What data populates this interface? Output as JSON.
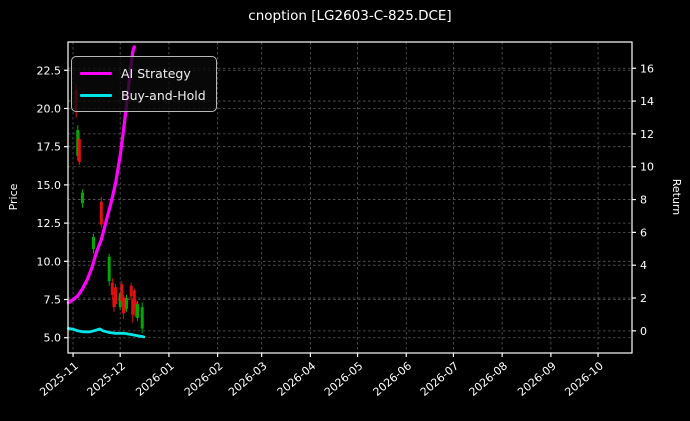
{
  "window": {
    "title": "cnoption [LG2603-C-825.DCE]"
  },
  "legend": {
    "items": [
      {
        "label": "AI Strategy",
        "color": "#ff00ff"
      },
      {
        "label": "Buy-and-Hold",
        "color": "#00e5e5"
      }
    ]
  },
  "chart_data": {
    "type": "candlestick+line",
    "title": "cnoption [LG2603-C-825.DCE]",
    "left_axis": {
      "label": "Price",
      "ticks": [
        5.0,
        7.5,
        10.0,
        12.5,
        15.0,
        17.5,
        20.0,
        22.5
      ],
      "ylim": [
        4.0,
        24.35
      ],
      "grid": true
    },
    "right_axis": {
      "label": "Return",
      "ticks": [
        0,
        2,
        4,
        6,
        8,
        10,
        12,
        14,
        16
      ],
      "ylim": [
        -1.35,
        17.6
      ],
      "grid": true
    },
    "x_axis": {
      "xlim_days": [
        -3.2,
        355.6
      ],
      "epoch": "2025-11-01",
      "ticks": [
        {
          "date": "2025-11-01",
          "label": "2025-11"
        },
        {
          "date": "2025-12-01",
          "label": "2025-12"
        },
        {
          "date": "2026-01-01",
          "label": "2026-01"
        },
        {
          "date": "2026-02-01",
          "label": "2026-02"
        },
        {
          "date": "2026-03-01",
          "label": "2026-03"
        },
        {
          "date": "2026-04-01",
          "label": "2026-04"
        },
        {
          "date": "2026-05-01",
          "label": "2026-05"
        },
        {
          "date": "2026-06-01",
          "label": "2026-06"
        },
        {
          "date": "2026-07-01",
          "label": "2026-07"
        },
        {
          "date": "2026-08-01",
          "label": "2026-08"
        },
        {
          "date": "2026-09-01",
          "label": "2026-09"
        },
        {
          "date": "2026-10-01",
          "label": "2026-10"
        }
      ]
    },
    "candles_note": "arrays are [date, open, high, low, close], plotted on left Price axis",
    "candles": [
      [
        "2025-11-03",
        21.2,
        21.6,
        19.4,
        19.8
      ],
      [
        "2025-11-04",
        16.9,
        18.9,
        16.6,
        18.6
      ],
      [
        "2025-11-05",
        18.0,
        18.3,
        16.3,
        16.5
      ],
      [
        "2025-11-07",
        13.8,
        14.7,
        13.5,
        14.5
      ],
      [
        "2025-11-14",
        10.8,
        11.8,
        10.5,
        11.6
      ],
      [
        "2025-11-19",
        13.9,
        14.2,
        12.2,
        12.4
      ],
      [
        "2025-11-24",
        8.7,
        10.5,
        8.4,
        10.3
      ],
      [
        "2025-11-26",
        8.6,
        8.9,
        7.5,
        7.8
      ],
      [
        "2025-11-27",
        7.6,
        8.0,
        6.7,
        7.0
      ],
      [
        "2025-11-28",
        8.3,
        8.5,
        7.0,
        7.2
      ],
      [
        "2025-12-01",
        7.0,
        8.0,
        6.8,
        7.9
      ],
      [
        "2025-12-02",
        8.5,
        8.7,
        7.2,
        7.4
      ],
      [
        "2025-12-03",
        7.6,
        7.8,
        6.2,
        6.6
      ],
      [
        "2025-12-04",
        7.5,
        7.7,
        6.6,
        6.8
      ],
      [
        "2025-12-05",
        6.9,
        7.8,
        6.7,
        7.6
      ],
      [
        "2025-12-08",
        8.4,
        8.6,
        7.5,
        7.7
      ],
      [
        "2025-12-09",
        7.5,
        7.6,
        6.0,
        6.5
      ],
      [
        "2025-12-10",
        8.1,
        8.2,
        6.9,
        7.0
      ],
      [
        "2025-12-11",
        7.3,
        7.5,
        6.3,
        6.4
      ],
      [
        "2025-12-12",
        6.3,
        7.4,
        6.1,
        7.2
      ],
      [
        "2025-12-15",
        5.6,
        7.3,
        5.3,
        7.0
      ]
    ],
    "series": [
      {
        "name": "AI Strategy",
        "axis": "right",
        "color": "#ff00ff",
        "linewidth": 3.2,
        "points": [
          [
            "2025-10-29",
            1.7
          ],
          [
            "2025-11-01",
            1.9
          ],
          [
            "2025-11-04",
            2.13
          ],
          [
            "2025-11-07",
            2.56
          ],
          [
            "2025-11-10",
            3.11
          ],
          [
            "2025-11-13",
            3.84
          ],
          [
            "2025-11-16",
            4.82
          ],
          [
            "2025-11-19",
            5.55
          ],
          [
            "2025-11-22",
            6.65
          ],
          [
            "2025-11-25",
            7.74
          ],
          [
            "2025-11-28",
            8.96
          ],
          [
            "2025-12-01",
            10.67
          ],
          [
            "2025-12-03",
            12.13
          ],
          [
            "2025-12-05",
            13.72
          ],
          [
            "2025-12-07",
            15.43
          ],
          [
            "2025-12-08",
            16.28
          ],
          [
            "2025-12-09",
            17.01
          ],
          [
            "2025-12-10",
            17.3
          ]
        ]
      },
      {
        "name": "Buy-and-Hold",
        "axis": "right",
        "color": "#00e5e5",
        "linewidth": 2.8,
        "points": [
          [
            "2025-10-29",
            0.15
          ],
          [
            "2025-11-01",
            0.1
          ],
          [
            "2025-11-04",
            0.0
          ],
          [
            "2025-11-07",
            -0.06
          ],
          [
            "2025-11-12",
            -0.06
          ],
          [
            "2025-11-16",
            0.05
          ],
          [
            "2025-11-18",
            0.12
          ],
          [
            "2025-11-20",
            0.0
          ],
          [
            "2025-11-24",
            -0.1
          ],
          [
            "2025-11-28",
            -0.15
          ],
          [
            "2025-12-03",
            -0.15
          ],
          [
            "2025-12-08",
            -0.22
          ],
          [
            "2025-12-12",
            -0.3
          ],
          [
            "2025-12-16",
            -0.37
          ]
        ]
      }
    ],
    "colors": {
      "up": "#00aa00",
      "down": "#e01010",
      "background": "#000000",
      "grid": "#5a5a5a",
      "spine": "#ffffff",
      "text": "#ffffff"
    }
  }
}
